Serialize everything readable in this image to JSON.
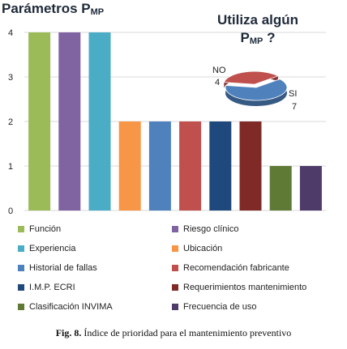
{
  "chart_data": [
    {
      "type": "bar",
      "title": "Parámetros P",
      "title_sub": "MP",
      "categories": [
        "Función",
        "Riesgo clínico",
        "Experiencia",
        "Ubicación",
        "Historial de fallas",
        "Recomendación fabricante",
        "I.M.P. ECRI",
        "Requerimientos mantenimiento",
        "Clasificación INVIMA",
        "Frecuencia de uso"
      ],
      "values": [
        4,
        4,
        4,
        2,
        2,
        2,
        2,
        2,
        1,
        1
      ],
      "colors": [
        "#9bbb59",
        "#8064a2",
        "#4bacc6",
        "#f79646",
        "#4f81bd",
        "#c0504d",
        "#1f497d",
        "#7f2a26",
        "#5f7a34",
        "#4e3b6a"
      ],
      "ylim": [
        0,
        4
      ],
      "yticks": [
        "0",
        "1",
        "2",
        "3",
        "4"
      ],
      "grid": true,
      "legend_position": "bottom"
    },
    {
      "type": "pie",
      "title": "Utiliza algún",
      "title_line2": "P",
      "title_line2_sub": "MP",
      "title_line2_suffix": " ?",
      "categories": [
        "NO",
        "SI"
      ],
      "values": [
        4,
        7
      ],
      "colors": [
        "#c0504d",
        "#4f81bd"
      ]
    }
  ],
  "caption": {
    "label": "Fig. 8.",
    "text": " Índice de prioridad para el mantenimiento preventivo"
  }
}
